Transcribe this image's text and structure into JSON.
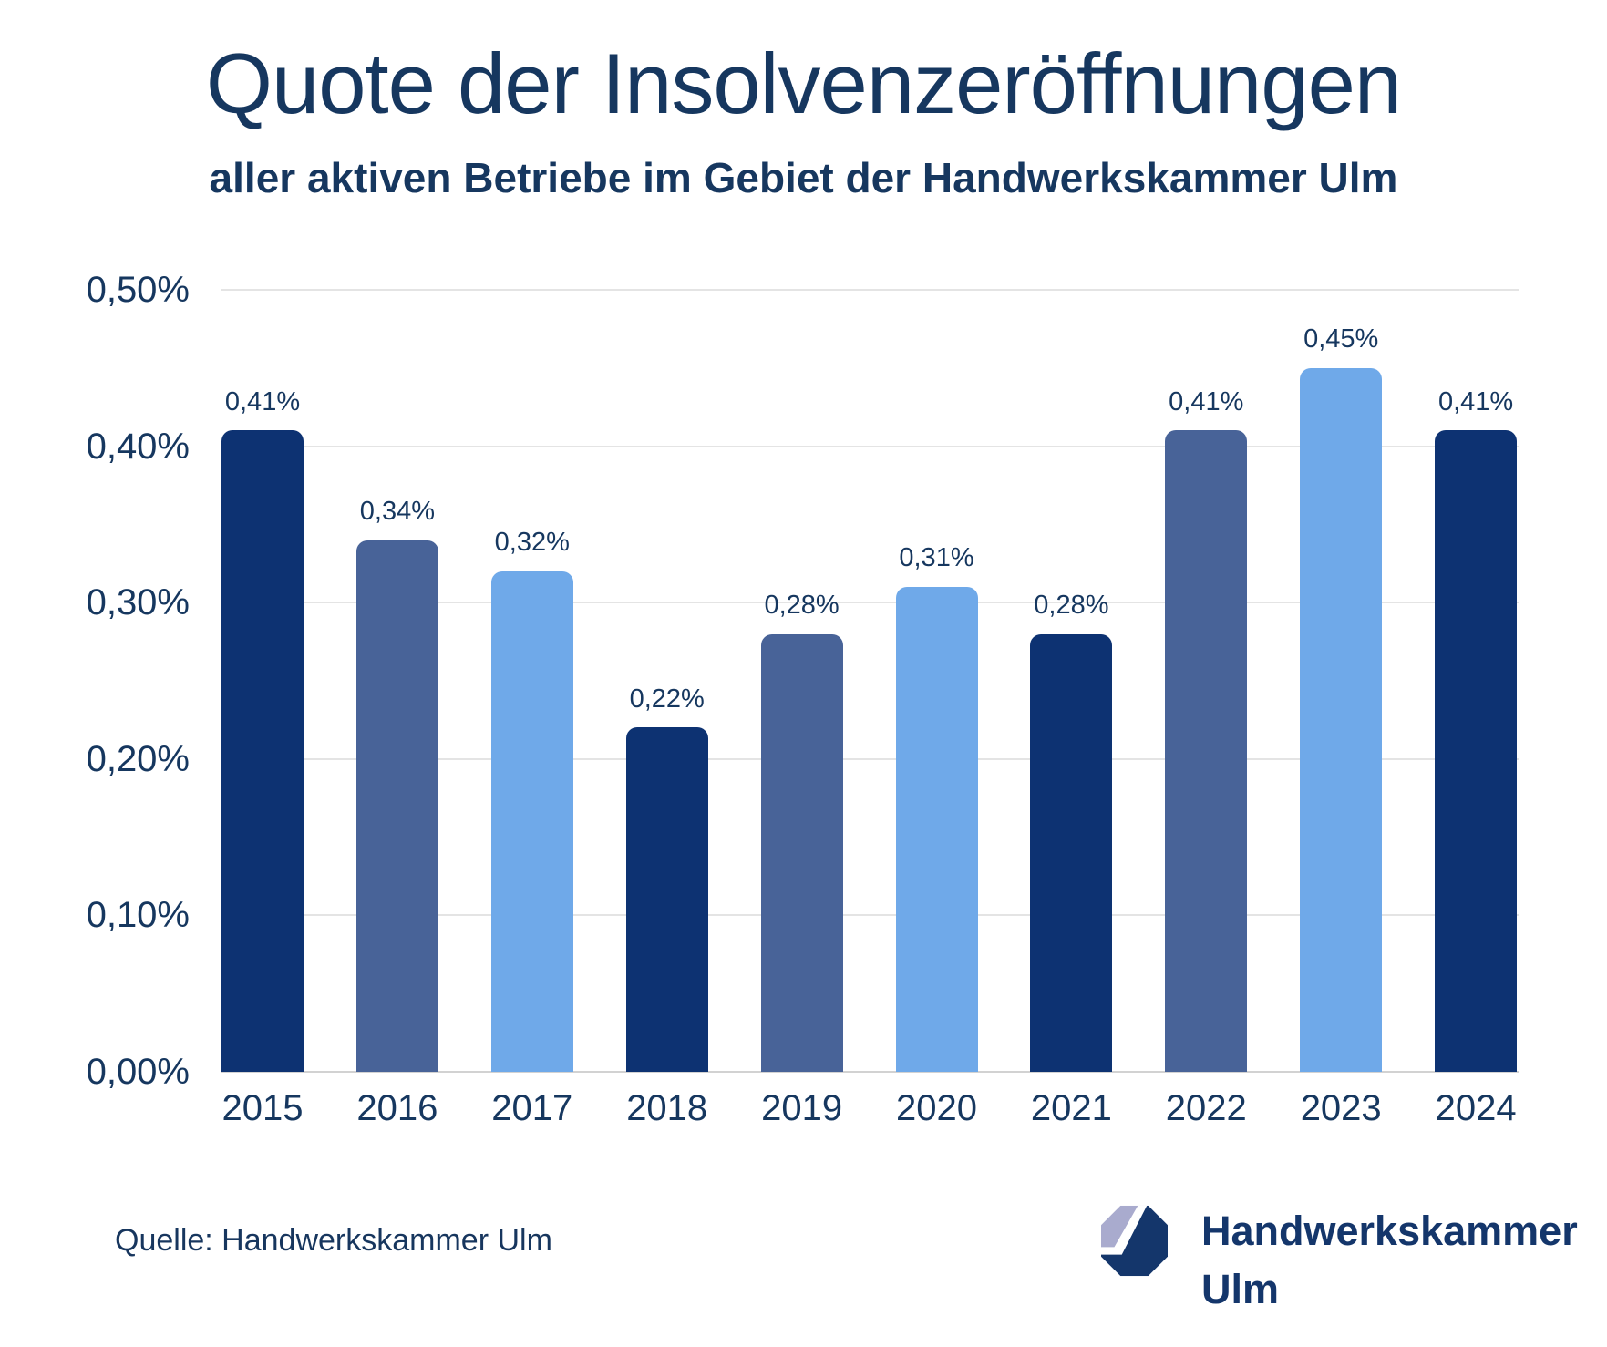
{
  "title": "Quote der Insolvenzeröffnungen",
  "subtitle": "aller aktiven Betriebe im Gebiet der Handwerkskammer Ulm",
  "source": {
    "text": "Quelle: Handwerkskammer Ulm"
  },
  "logo": {
    "line1": "Handwerkskammer",
    "line2": "Ulm"
  },
  "colors": {
    "navy": "#0d3272",
    "slate": "#486398",
    "lightblue": "#6fa9e9",
    "text_navy": "#16375f",
    "gridline": "#e4e4e4",
    "logo_light": "#a9abce",
    "logo_dark": "#14366b",
    "background": "#ffffff"
  },
  "chart_data": {
    "type": "bar",
    "title": "Quote der Insolvenzeröffnungen",
    "subtitle": "aller aktiven Betriebe im Gebiet der Handwerkskammer Ulm",
    "xlabel": "",
    "ylabel": "",
    "categories": [
      "2015",
      "2016",
      "2017",
      "2018",
      "2019",
      "2020",
      "2021",
      "2022",
      "2023",
      "2024"
    ],
    "values": [
      0.41,
      0.34,
      0.32,
      0.22,
      0.28,
      0.31,
      0.28,
      0.41,
      0.45,
      0.41
    ],
    "value_labels": [
      "0,41%",
      "0,34%",
      "0,32%",
      "0,22%",
      "0,28%",
      "0,31%",
      "0,28%",
      "0,41%",
      "0,45%",
      "0,41%"
    ],
    "bar_color_keys": [
      "navy",
      "slate",
      "lightblue",
      "navy",
      "slate",
      "lightblue",
      "navy",
      "slate",
      "lightblue",
      "navy"
    ],
    "unit": "percent",
    "ylim": [
      0.0,
      0.5
    ],
    "y_ticks": [
      "0,50%",
      "0,40%",
      "0,30%",
      "0,20%",
      "0,10%",
      "0,00%"
    ],
    "y_tick_values": [
      0.5,
      0.4,
      0.3,
      0.2,
      0.1,
      0.0
    ],
    "grid": true,
    "legend": false
  }
}
